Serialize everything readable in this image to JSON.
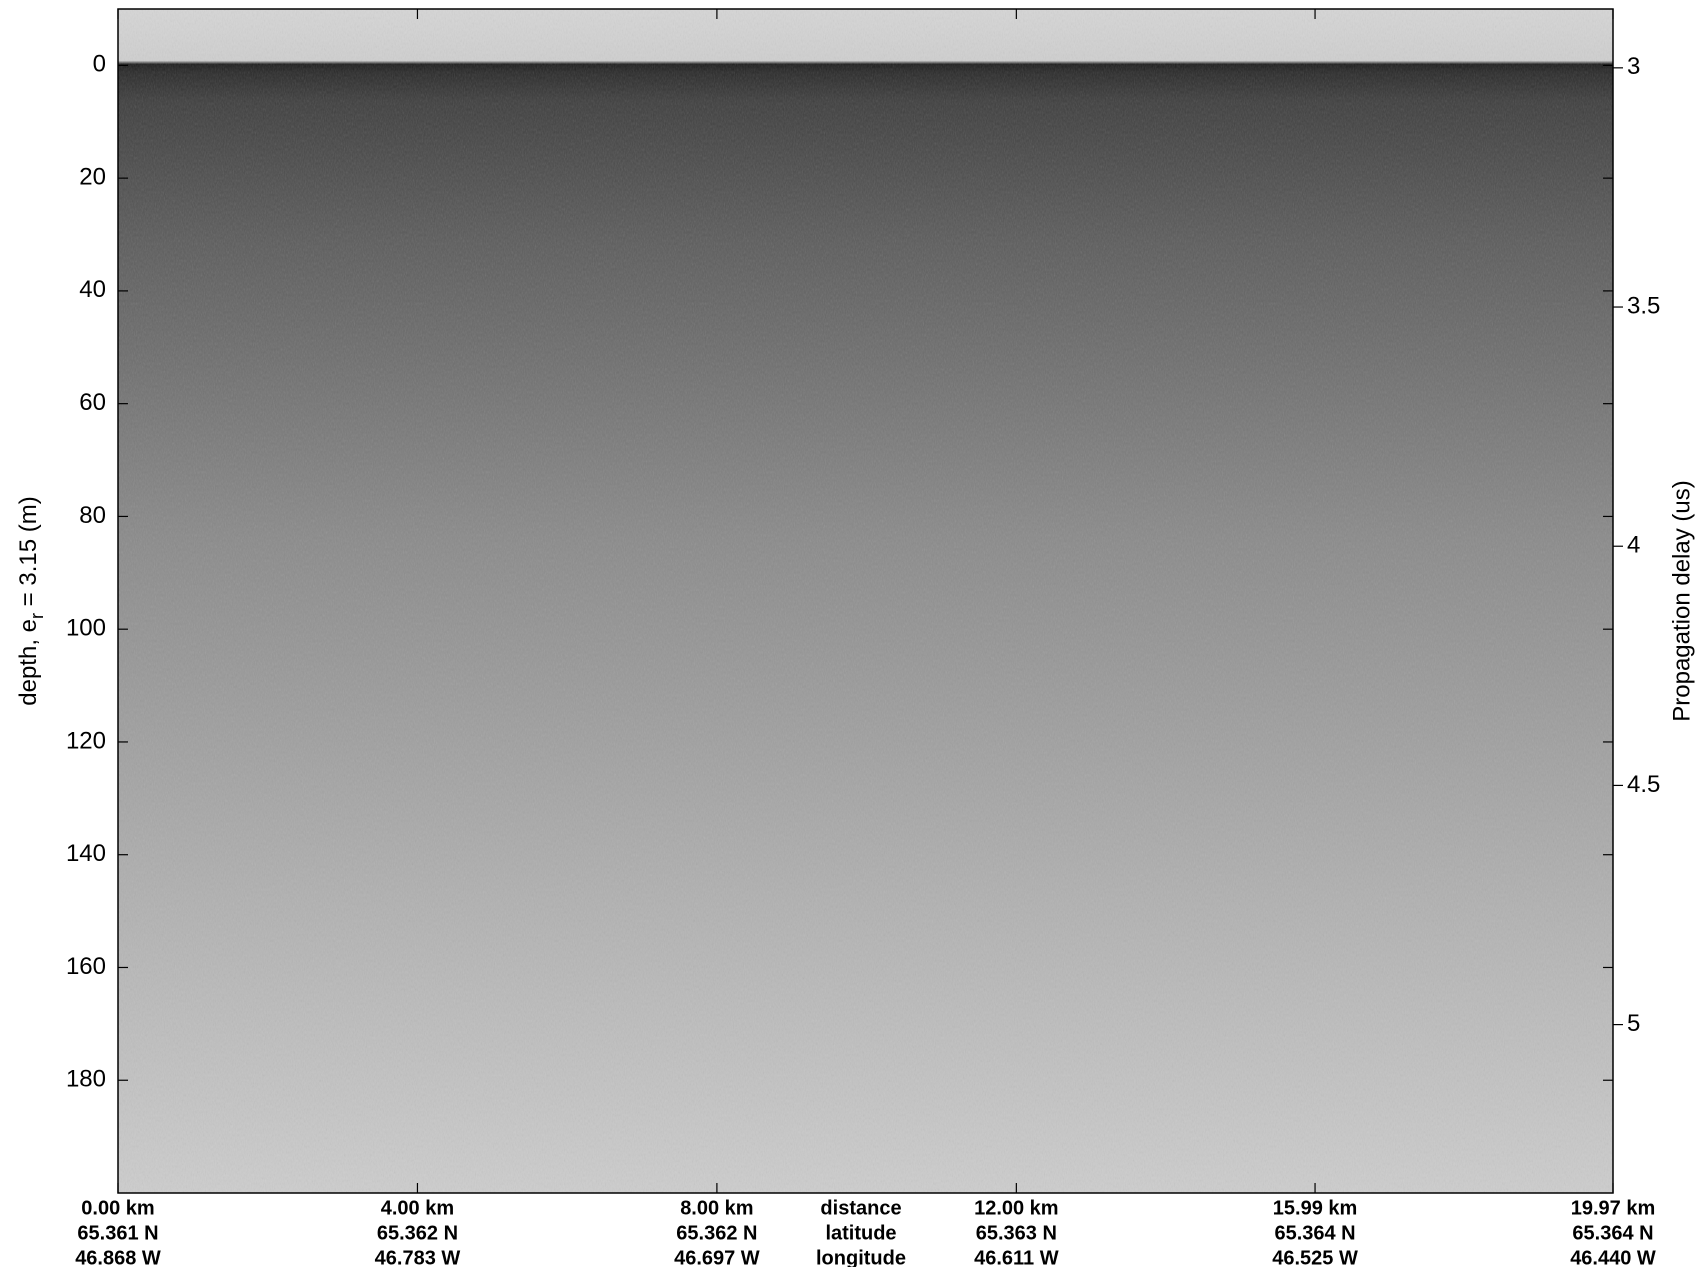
{
  "chart_data": {
    "type": "echogram",
    "ylabel": {
      "text": "depth, e",
      "subscript": "r",
      "suffix": " = 3.15 (m)"
    },
    "y2label": "Propagation delay (us)",
    "ylim": [
      -10,
      200
    ],
    "yticks": [
      0,
      20,
      40,
      60,
      80,
      100,
      120,
      140,
      160,
      180
    ],
    "y2lim": [
      2.877,
      5.352
    ],
    "y2ticks": [
      3,
      3.5,
      4,
      4.5,
      5
    ],
    "xlim": [
      0,
      19.97
    ],
    "xticks": [
      {
        "value": 0,
        "label": "0.00 km"
      },
      {
        "value": 4.0,
        "label": "4.00 km"
      },
      {
        "value": 8.0,
        "label": "8.00 km"
      },
      {
        "value": 12.0,
        "label": "12.00 km"
      },
      {
        "value": 15.99,
        "label": "15.99 km"
      },
      {
        "value": 19.97,
        "label": "19.97 km"
      }
    ],
    "latitude_labels": [
      "65.361 N",
      "65.362 N",
      "65.362 N",
      "65.363 N",
      "65.364 N",
      "65.364 N"
    ],
    "longitude_labels": [
      "46.868 W",
      "46.783 W",
      "46.697 W",
      "46.611 W",
      "46.525 W",
      "46.440 W"
    ],
    "row_names": [
      "distance",
      "latitude",
      "longitude"
    ]
  }
}
